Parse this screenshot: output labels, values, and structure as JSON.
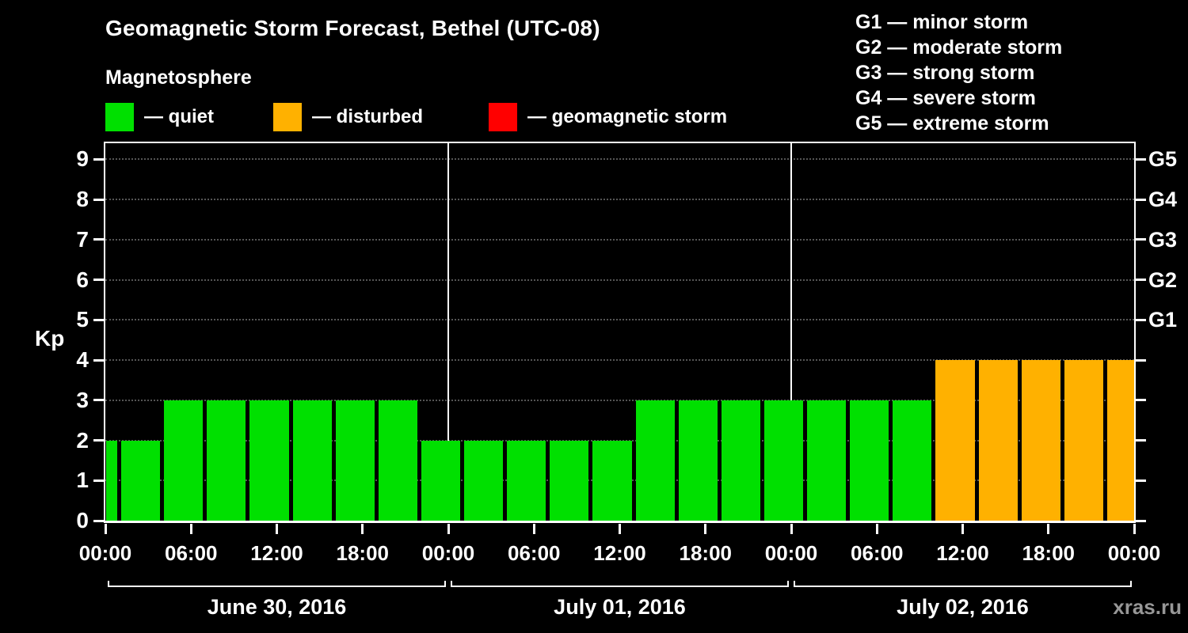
{
  "subtitle": "Magnetosphere",
  "watermark": "xras.ru",
  "legend": {
    "items": [
      {
        "key": "quiet",
        "label": "— quiet",
        "color": "#00e000"
      },
      {
        "key": "disturbed",
        "label": "— disturbed",
        "color": "#ffb100"
      },
      {
        "key": "storm",
        "label": "— geomagnetic storm",
        "color": "#ff0000"
      }
    ]
  },
  "storm_scale": [
    "G1 — minor storm",
    "G2 — moderate storm",
    "G3 — strong storm",
    "G4 — severe storm",
    "G5 — extreme storm"
  ],
  "chart_data": {
    "type": "bar",
    "title": "Geomagnetic Storm Forecast, Bethel (UTC-08)",
    "ylabel": "Kp",
    "ylim": [
      0,
      9.4
    ],
    "yticks": [
      0,
      1,
      2,
      3,
      4,
      5,
      6,
      7,
      8,
      9
    ],
    "right_axis_labels": [
      {
        "kp": 5,
        "label": "G1"
      },
      {
        "kp": 6,
        "label": "G2"
      },
      {
        "kp": 7,
        "label": "G3"
      },
      {
        "kp": 8,
        "label": "G4"
      },
      {
        "kp": 9,
        "label": "G5"
      }
    ],
    "x_hours_total": 72,
    "x_ticks": [
      {
        "hour": 0,
        "label": "00:00"
      },
      {
        "hour": 6,
        "label": "06:00"
      },
      {
        "hour": 12,
        "label": "12:00"
      },
      {
        "hour": 18,
        "label": "18:00"
      },
      {
        "hour": 24,
        "label": "00:00"
      },
      {
        "hour": 30,
        "label": "06:00"
      },
      {
        "hour": 36,
        "label": "12:00"
      },
      {
        "hour": 42,
        "label": "18:00"
      },
      {
        "hour": 48,
        "label": "00:00"
      },
      {
        "hour": 54,
        "label": "06:00"
      },
      {
        "hour": 60,
        "label": "12:00"
      },
      {
        "hour": 66,
        "label": "18:00"
      },
      {
        "hour": 72,
        "label": "00:00"
      }
    ],
    "day_separators_hours": [
      24,
      48
    ],
    "days": [
      {
        "label": "June 30, 2016",
        "start_hour": 0,
        "end_hour": 24
      },
      {
        "label": "July 01, 2016",
        "start_hour": 24,
        "end_hour": 48
      },
      {
        "label": "July 02, 2016",
        "start_hour": 48,
        "end_hour": 72
      }
    ],
    "bars": [
      {
        "start": 0,
        "end": 1,
        "kp": 2
      },
      {
        "start": 1,
        "end": 4,
        "kp": 2
      },
      {
        "start": 4,
        "end": 7,
        "kp": 3
      },
      {
        "start": 7,
        "end": 10,
        "kp": 3
      },
      {
        "start": 10,
        "end": 13,
        "kp": 3
      },
      {
        "start": 13,
        "end": 16,
        "kp": 3
      },
      {
        "start": 16,
        "end": 19,
        "kp": 3
      },
      {
        "start": 19,
        "end": 22,
        "kp": 3
      },
      {
        "start": 22,
        "end": 25,
        "kp": 2
      },
      {
        "start": 25,
        "end": 28,
        "kp": 2
      },
      {
        "start": 28,
        "end": 31,
        "kp": 2
      },
      {
        "start": 31,
        "end": 34,
        "kp": 2
      },
      {
        "start": 34,
        "end": 37,
        "kp": 2
      },
      {
        "start": 37,
        "end": 40,
        "kp": 3
      },
      {
        "start": 40,
        "end": 43,
        "kp": 3
      },
      {
        "start": 43,
        "end": 46,
        "kp": 3
      },
      {
        "start": 46,
        "end": 49,
        "kp": 3
      },
      {
        "start": 49,
        "end": 52,
        "kp": 3
      },
      {
        "start": 52,
        "end": 55,
        "kp": 3
      },
      {
        "start": 55,
        "end": 58,
        "kp": 3
      },
      {
        "start": 58,
        "end": 61,
        "kp": 4
      },
      {
        "start": 61,
        "end": 64,
        "kp": 4
      },
      {
        "start": 64,
        "end": 67,
        "kp": 4
      },
      {
        "start": 67,
        "end": 70,
        "kp": 4
      },
      {
        "start": 70,
        "end": 72,
        "kp": 4
      }
    ],
    "colors": {
      "quiet": "#00e000",
      "disturbed": "#ffb100",
      "storm": "#ff0000"
    },
    "kp_thresholds": {
      "quiet_max": 3,
      "disturbed_max": 4
    }
  }
}
